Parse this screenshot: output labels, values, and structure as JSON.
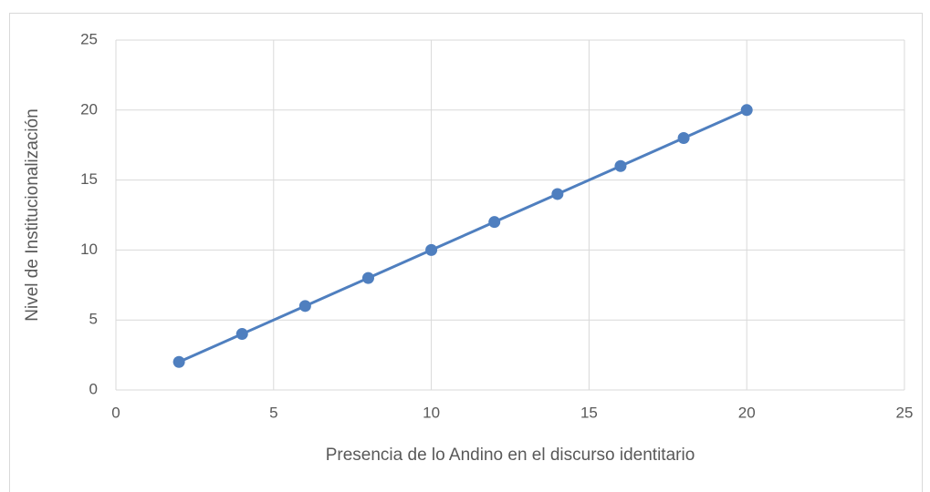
{
  "chart_data": {
    "type": "line",
    "x": [
      2,
      4,
      6,
      8,
      10,
      12,
      14,
      16,
      18,
      20
    ],
    "series": [
      {
        "color": "#4f7fbf",
        "values": [
          2,
          4,
          6,
          8,
          10,
          12,
          14,
          16,
          18,
          20
        ]
      }
    ],
    "xlabel": "Presencia de lo Andino en el discurso identitario",
    "ylabel": "Nivel de Institucionalización",
    "xlim": [
      0,
      25
    ],
    "xticks": [
      0,
      5,
      10,
      15,
      20,
      25
    ],
    "ylim": [
      0,
      25
    ],
    "yticks": [
      0,
      5,
      10,
      15,
      20,
      25
    ],
    "grid": true,
    "markers": true
  }
}
